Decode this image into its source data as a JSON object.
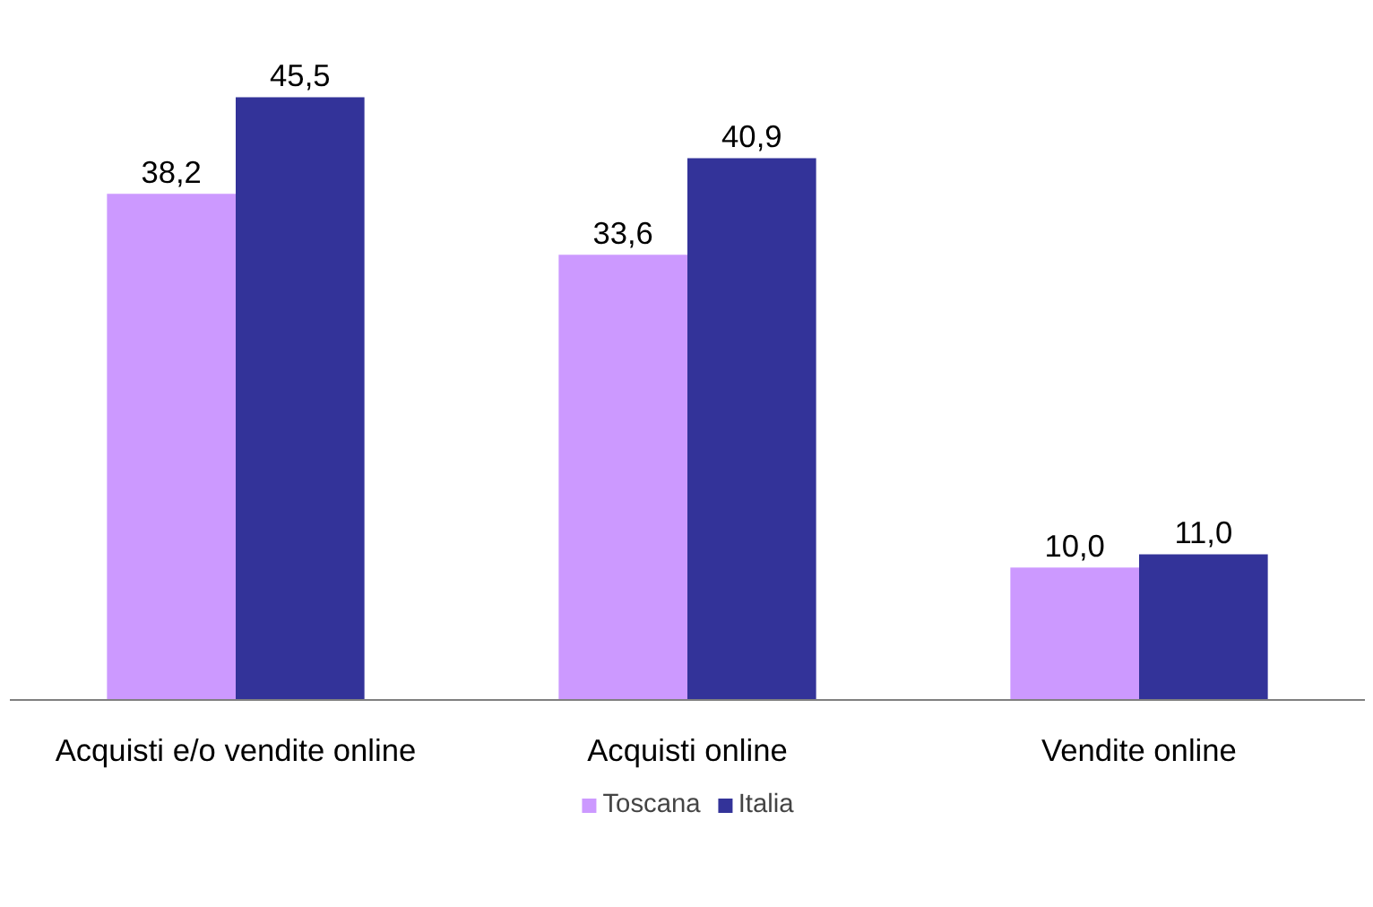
{
  "chart_data": {
    "type": "bar",
    "categories": [
      "Acquisti e/o vendite online",
      "Acquisti online",
      "Vendite online"
    ],
    "series": [
      {
        "name": "Toscana",
        "color": "#cc99ff",
        "values": [
          38.2,
          33.6,
          10.0
        ],
        "value_labels": [
          "38,2",
          "33,6",
          "10,0"
        ]
      },
      {
        "name": "Italia",
        "color": "#333399",
        "values": [
          45.5,
          40.9,
          11.0
        ],
        "value_labels": [
          "45,5",
          "40,9",
          "11,0"
        ]
      }
    ],
    "legend": "bottom"
  }
}
